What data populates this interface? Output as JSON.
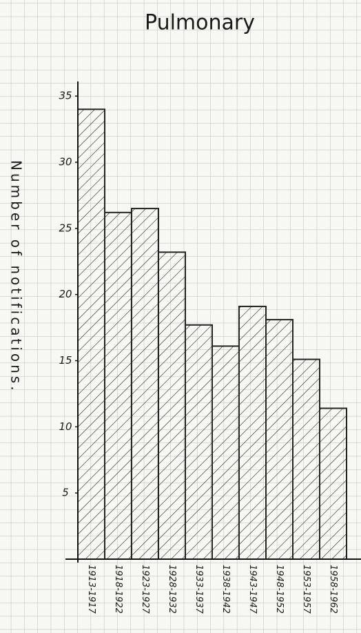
{
  "chart_data": {
    "type": "bar",
    "title": "Pulmonary",
    "y_label": "Number of notifications.",
    "categories": [
      "1913-1917",
      "1918-1922",
      "1923-1927",
      "1928-1932",
      "1933-1937",
      "1938-1942",
      "1943-1947",
      "1948-1952",
      "1953-1957",
      "1958-1962"
    ],
    "values": [
      34,
      26.2,
      26.5,
      23.2,
      17.7,
      16.1,
      19.1,
      18.1,
      15.1,
      11.4
    ],
    "color": "#222222",
    "ylim": [
      0,
      36
    ],
    "yticks": [
      5,
      10,
      15,
      20,
      25,
      30,
      35
    ]
  }
}
